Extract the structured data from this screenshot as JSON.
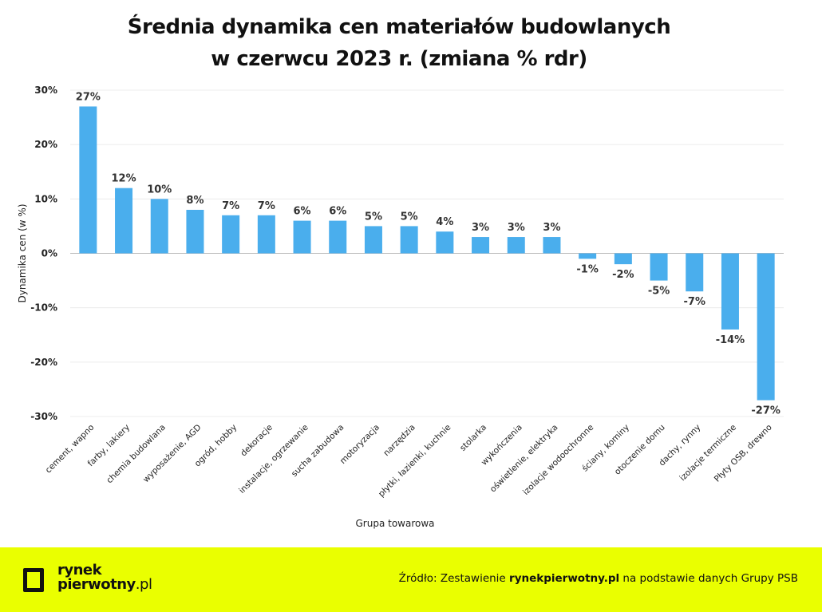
{
  "chart_data": {
    "type": "bar",
    "title_lines": [
      "Średnia dynamika cen materiałów budowlanych",
      "w czerwcu 2023 r. (zmiana % rdr)"
    ],
    "xlabel": "Grupa towarowa",
    "ylabel": "Dynamika cen (w %)",
    "ylim": [
      -30,
      30
    ],
    "yticks": [
      30,
      20,
      10,
      0,
      -10,
      -20,
      -30
    ],
    "ytick_labels": [
      "30%",
      "20%",
      "10%",
      "0%",
      "-10%",
      "-20%",
      "-30%"
    ],
    "grid": true,
    "bar_color": "#4aaeed",
    "categories": [
      "cement, wapno",
      "farby, lakiery",
      "chemia budowlana",
      "wyposażenie, AGD",
      "ogród, hobby",
      "dekoracje",
      "instalacje, ogrzewanie",
      "sucha zabudowa",
      "motoryzacja",
      "narzędzia",
      "płytki, łazienki, kuchnie",
      "stolarka",
      "wykończenia",
      "oświetlenie, elektryka",
      "izolacje wodoochronne",
      "ściany, kominy",
      "otoczenie domu",
      "dachy, rynny",
      "izolacje termiczne",
      "Płyty OSB, drewno"
    ],
    "values": [
      27,
      12,
      10,
      8,
      7,
      7,
      6,
      6,
      5,
      5,
      4,
      3,
      3,
      3,
      -1,
      -2,
      -5,
      -7,
      -14,
      -27
    ],
    "data_labels": [
      "27%",
      "12%",
      "10%",
      "8%",
      "7%",
      "7%",
      "6%",
      "6%",
      "5%",
      "5%",
      "4%",
      "3%",
      "3%",
      "3%",
      "-1%",
      "-2%",
      "-5%",
      "-7%",
      "-14%",
      "-27%"
    ]
  },
  "footer": {
    "background": "#eaff00",
    "logo_line1": "rynek",
    "logo_line2": "pierwotny",
    "logo_suffix": ".pl",
    "source_prefix": "Źródło: Zestawienie ",
    "source_bold": "rynekpierwotny.pl",
    "source_suffix": " na podstawie danych Grupy PSB"
  }
}
